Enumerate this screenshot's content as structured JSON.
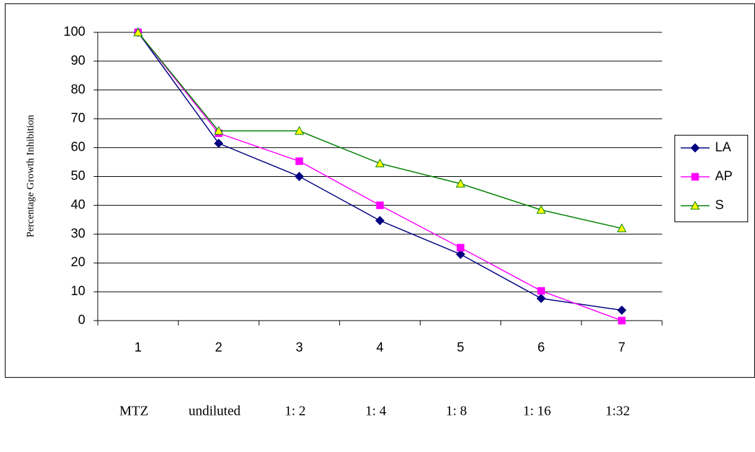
{
  "chart_data": {
    "type": "line",
    "y_label": "Percentage Growth Inhibition",
    "categories": [
      "1",
      "2",
      "3",
      "4",
      "5",
      "6",
      "7"
    ],
    "series": [
      {
        "name": "LA",
        "color": "#000080",
        "marker": "diamond",
        "values": [
          100,
          61.5,
          50,
          34.7,
          23,
          7.7,
          3.6
        ]
      },
      {
        "name": "AP",
        "color": "#ff00ff",
        "marker": "square",
        "values": [
          100,
          65,
          55.3,
          40,
          25.3,
          10.3,
          0
        ]
      },
      {
        "name": "S",
        "color": "#008000",
        "marker": "triangle",
        "marker_fill": "#ffff00",
        "values": [
          100,
          65.8,
          65.8,
          54.5,
          47.5,
          38.4,
          32
        ]
      }
    ],
    "ylim": [
      0,
      100
    ],
    "yticks": [
      0,
      10,
      20,
      30,
      40,
      50,
      60,
      70,
      80,
      90,
      100
    ],
    "grid": true,
    "legend": "right",
    "annotations": [
      "MTZ",
      "undiluted",
      "1: 2",
      "1: 4",
      "1: 8",
      "1: 16",
      "1:32"
    ]
  }
}
